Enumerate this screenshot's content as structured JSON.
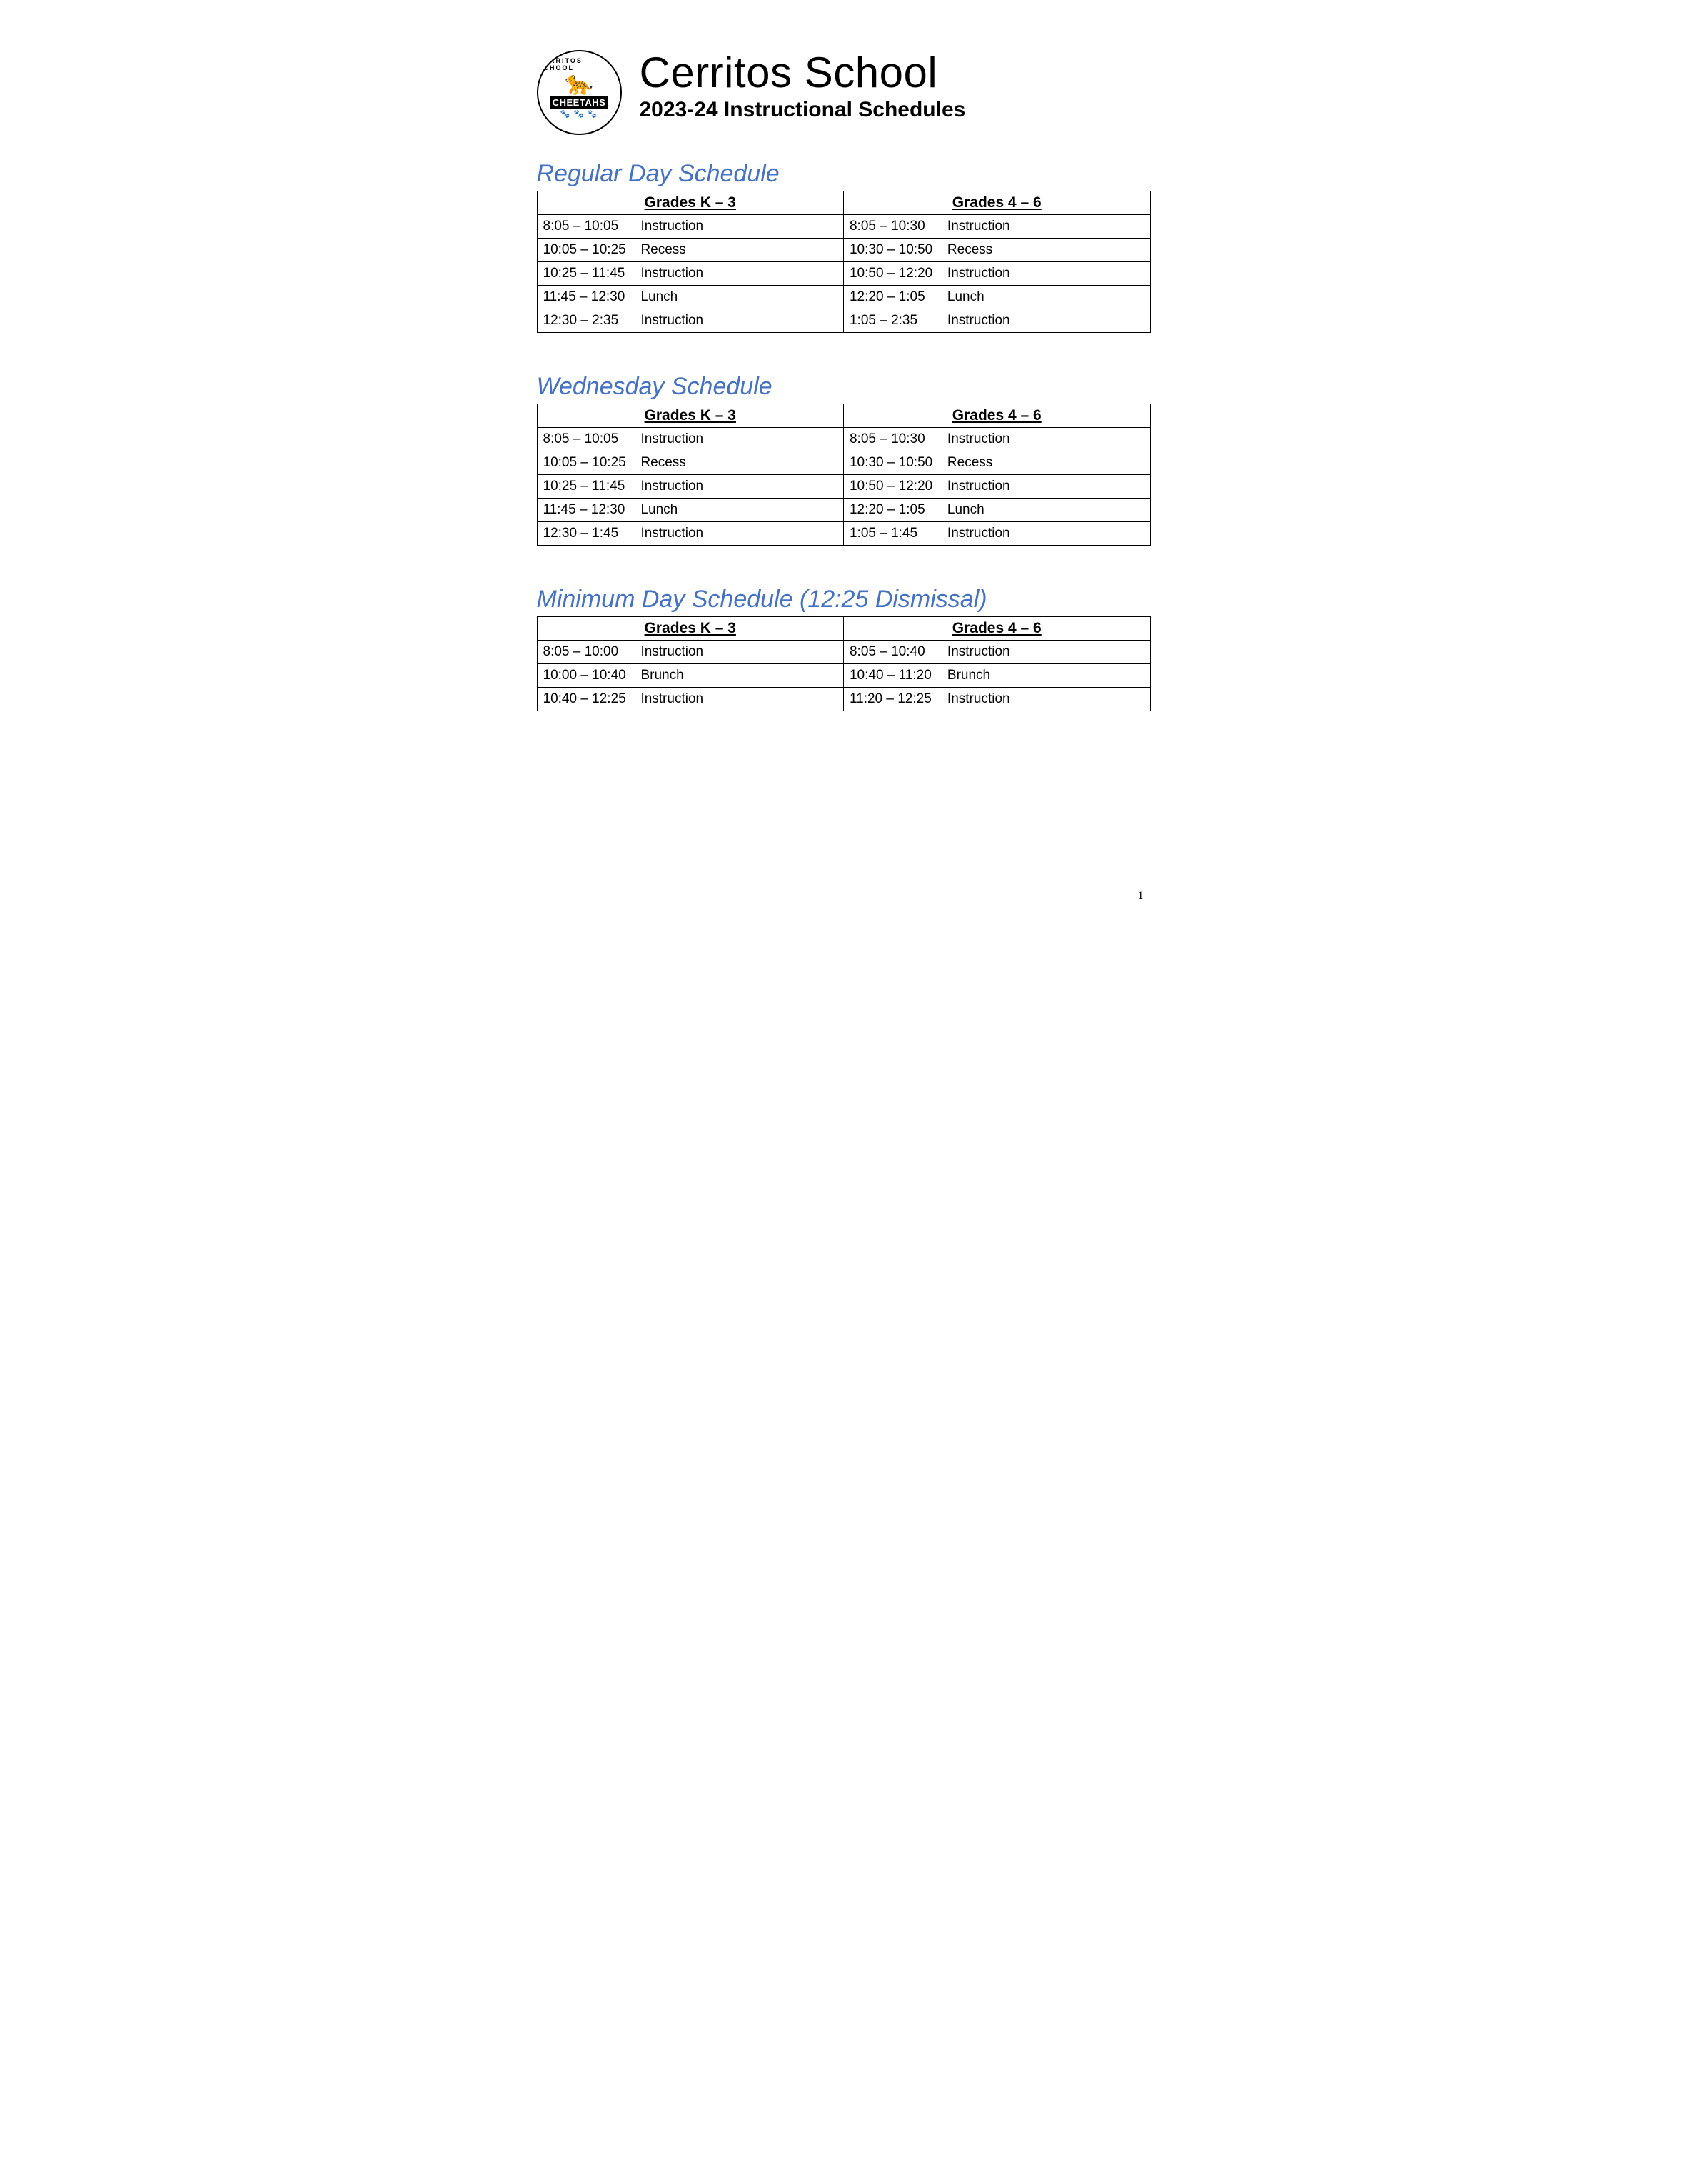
{
  "colors": {
    "heading": "#4472c4",
    "text": "#000000",
    "background": "#ffffff",
    "logo_accent": "#d4a84b",
    "border": "#000000"
  },
  "typography": {
    "title_fontsize": 60,
    "subtitle_fontsize": 30,
    "section_heading_fontsize": 34,
    "table_header_fontsize": 21,
    "table_cell_fontsize": 19
  },
  "logo": {
    "arc_text": "CERRITOS SCHOOL",
    "banner_text": "CHEETAHS",
    "mascot_glyph": "🐆",
    "paws_glyph": "🐾 🐾 🐾"
  },
  "header": {
    "title": "Cerritos School",
    "subtitle": "2023-24 Instructional Schedules"
  },
  "sections": [
    {
      "heading": "Regular Day Schedule",
      "col_headers": [
        "Grades K – 3",
        "Grades 4 – 6"
      ],
      "rows": [
        {
          "l_time": "8:05 – 10:05",
          "l_act": "Instruction",
          "l_indent": true,
          "r_time": "8:05 – 10:30",
          "r_act": "Instruction",
          "r_indent": true
        },
        {
          "l_time": "10:05 – 10:25",
          "l_act": "Recess",
          "l_indent": false,
          "r_time": "10:30 – 10:50",
          "r_act": "Recess",
          "r_indent": false
        },
        {
          "l_time": "10:25 – 11:45",
          "l_act": "Instruction",
          "l_indent": false,
          "r_time": "10:50 – 12:20",
          "r_act": "Instruction",
          "r_indent": false
        },
        {
          "l_time": "11:45 – 12:30",
          "l_act": "Lunch",
          "l_indent": false,
          "r_time": "12:20 – 1:05",
          "r_act": "Lunch",
          "r_indent": false
        },
        {
          "l_time": "12:30 – 2:35",
          "l_act": "Instruction",
          "l_indent": false,
          "r_time": "1:05 – 2:35",
          "r_act": "Instruction",
          "r_indent": true
        }
      ]
    },
    {
      "heading": "Wednesday Schedule",
      "col_headers": [
        "Grades K – 3",
        "Grades 4 – 6"
      ],
      "rows": [
        {
          "l_time": "8:05 – 10:05",
          "l_act": "Instruction",
          "l_indent": true,
          "r_time": "8:05 – 10:30",
          "r_act": "Instruction",
          "r_indent": true
        },
        {
          "l_time": "10:05 – 10:25",
          "l_act": "Recess",
          "l_indent": false,
          "r_time": "10:30 – 10:50",
          "r_act": "Recess",
          "r_indent": false
        },
        {
          "l_time": "10:25 – 11:45",
          "l_act": "Instruction",
          "l_indent": false,
          "r_time": "10:50 – 12:20",
          "r_act": "Instruction",
          "r_indent": false
        },
        {
          "l_time": "11:45 – 12:30",
          "l_act": "Lunch",
          "l_indent": false,
          "r_time": "12:20 – 1:05",
          "r_act": "Lunch",
          "r_indent": false
        },
        {
          "l_time": "12:30 – 1:45",
          "l_act": "Instruction",
          "l_indent": false,
          "r_time": "1:05 – 1:45",
          "r_act": "Instruction",
          "r_indent": true
        }
      ]
    },
    {
      "heading": "Minimum Day Schedule (12:25 Dismissal)",
      "col_headers": [
        "Grades K – 3",
        "Grades 4 – 6"
      ],
      "rows": [
        {
          "l_time": "8:05 – 10:00",
          "l_act": "Instruction",
          "l_indent": true,
          "r_time": "8:05 – 10:40",
          "r_act": "Instruction",
          "r_indent": true
        },
        {
          "l_time": "10:00 – 10:40",
          "l_act": "Brunch",
          "l_indent": false,
          "r_time": "10:40 – 11:20",
          "r_act": "Brunch",
          "r_indent": false
        },
        {
          "l_time": "10:40 – 12:25",
          "l_act": "Instruction",
          "l_indent": false,
          "r_time": "11:20 – 12:25",
          "r_act": "Instruction",
          "r_indent": false
        }
      ]
    }
  ],
  "page_number": "1"
}
